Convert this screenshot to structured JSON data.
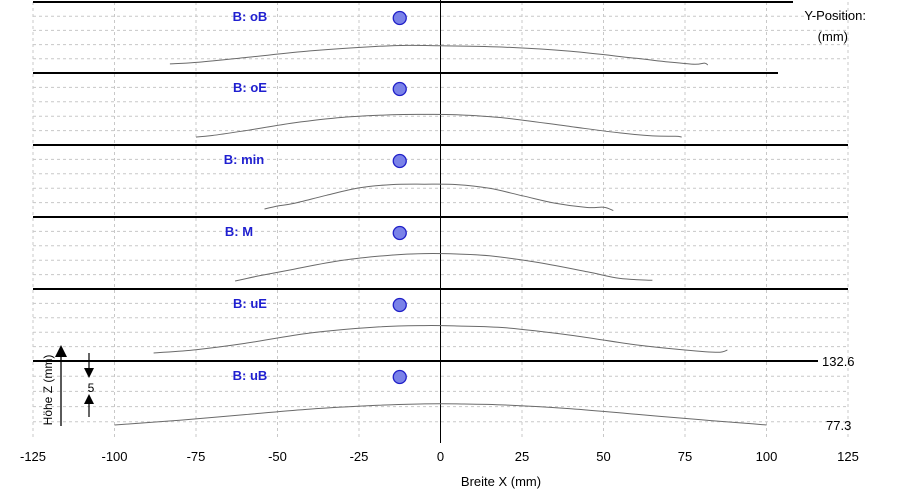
{
  "chart_data": {
    "type": "line",
    "xlabel": "Breite X (mm)",
    "ylabel": "Höhe Z (mm)",
    "right_header": [
      "Y-Position:",
      "(mm)"
    ],
    "xlim": [
      -125,
      125
    ],
    "x_ticks": [
      -125,
      -100,
      -75,
      -50,
      -25,
      0,
      25,
      50,
      75,
      100,
      125
    ],
    "scale_bar": {
      "label": "5",
      "value_mm": 5
    },
    "marker_x": -12.5,
    "colors": {
      "label": "#1f1fd0",
      "marker_fill": "#7a82e8",
      "marker_stroke": "#1f1fc8",
      "profile": "#6a6a6a"
    },
    "y_annotations": [
      {
        "text": "132.6",
        "section": "uB",
        "at": "separator"
      },
      {
        "text": "77.3",
        "section": "uB",
        "at": "baseline"
      }
    ],
    "series": [
      {
        "name": "B: oB",
        "x": [
          -83,
          -75,
          -60,
          -40,
          -20,
          -10,
          0,
          20,
          40,
          60,
          70,
          78,
          81,
          82
        ],
        "z": [
          0.3,
          0.7,
          2.0,
          3.8,
          5.0,
          5.3,
          5.2,
          4.8,
          3.7,
          1.8,
          0.8,
          0.2,
          0.5,
          0.0
        ]
      },
      {
        "name": "B: oE",
        "x": [
          -75,
          -70,
          -60,
          -45,
          -30,
          -15,
          -5,
          5,
          20,
          40,
          55,
          65,
          72,
          74
        ],
        "z": [
          0.0,
          0.4,
          1.7,
          3.8,
          5.3,
          6.0,
          6.1,
          6.0,
          5.1,
          2.8,
          1.1,
          0.3,
          0.2,
          0.0
        ]
      },
      {
        "name": "B: min",
        "x": [
          -54,
          -50,
          -45,
          -35,
          -25,
          -15,
          -5,
          5,
          15,
          25,
          35,
          45,
          50,
          53
        ],
        "z": [
          0.0,
          0.8,
          1.5,
          3.7,
          5.7,
          6.6,
          6.7,
          6.6,
          5.6,
          3.6,
          1.6,
          0.4,
          0.5,
          -0.4
        ]
      },
      {
        "name": "B: M",
        "x": [
          -63,
          -55,
          -45,
          -30,
          -15,
          -5,
          5,
          15,
          30,
          45,
          55,
          65
        ],
        "z": [
          0.0,
          1.5,
          3.2,
          5.6,
          7.0,
          7.4,
          7.3,
          6.8,
          5.0,
          2.5,
          0.7,
          0.2
        ]
      },
      {
        "name": "B: uE",
        "x": [
          -88,
          -75,
          -60,
          -40,
          -20,
          -5,
          5,
          20,
          40,
          60,
          75,
          85,
          88
        ],
        "z": [
          0.0,
          0.9,
          2.6,
          5.4,
          7.0,
          7.4,
          7.3,
          6.8,
          4.8,
          2.2,
          0.8,
          0.2,
          0.8
        ]
      },
      {
        "name": "B: uB",
        "x": [
          -100,
          -80,
          -60,
          -40,
          -20,
          -5,
          5,
          20,
          40,
          60,
          80,
          96,
          100
        ],
        "z": [
          0.0,
          1.3,
          2.8,
          4.3,
          5.3,
          5.7,
          5.7,
          5.4,
          4.4,
          2.9,
          1.4,
          0.3,
          0.0
        ]
      }
    ]
  }
}
